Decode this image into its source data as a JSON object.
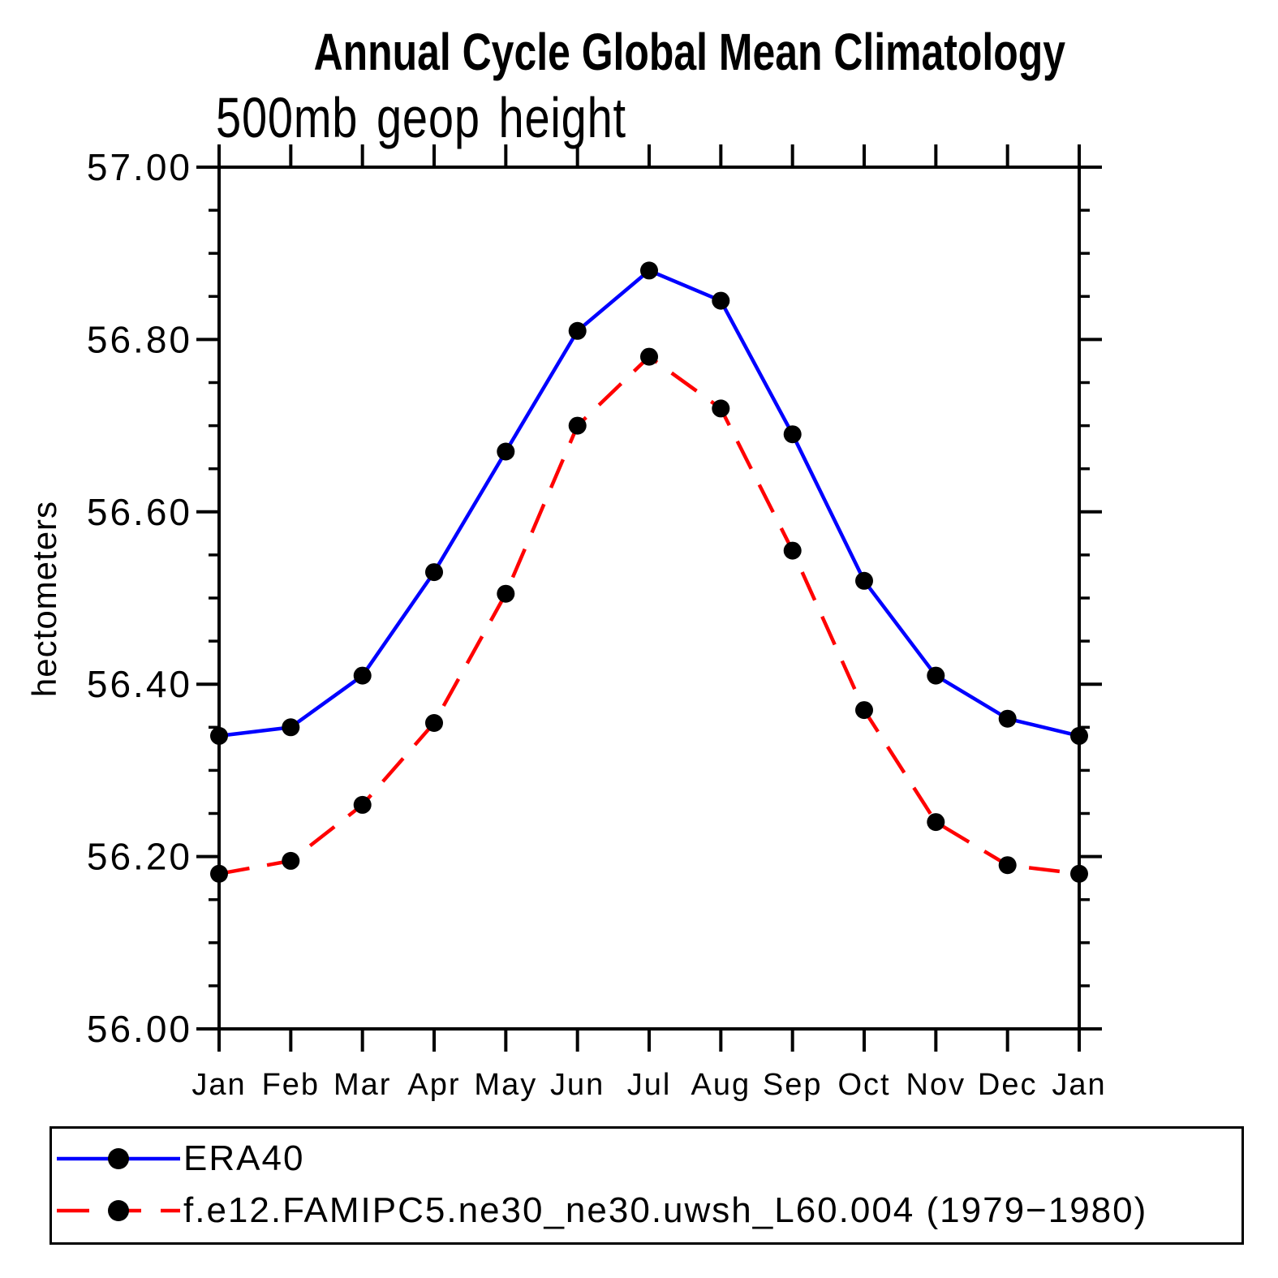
{
  "page": {
    "background": "#ffffff",
    "text_color": "#000000"
  },
  "chart_data": {
    "type": "line",
    "title": "Annual Cycle Global Mean Climatology",
    "subtitle": "500mb geop height",
    "ylabel": "hectometers",
    "x_categories": [
      "Jan",
      "Feb",
      "Mar",
      "Apr",
      "May",
      "Jun",
      "Jul",
      "Aug",
      "Sep",
      "Oct",
      "Nov",
      "Dec",
      "Jan"
    ],
    "ylim": [
      56.0,
      57.0
    ],
    "ytick_values": [
      57.0,
      56.8,
      56.6,
      56.4,
      56.2,
      56.0
    ],
    "ytick_labels": [
      "57.00",
      "56.80",
      "56.60",
      "56.40",
      "56.20",
      "56.00"
    ],
    "ytick_minor_interval": 0.05,
    "grid": false,
    "axis_color": "#000000",
    "legend_position": "bottom",
    "series": [
      {
        "name": "ERA40",
        "color": "#0000ff",
        "line_style": "solid",
        "marker": "circle",
        "marker_color": "#000000",
        "values": [
          56.34,
          56.35,
          56.41,
          56.53,
          56.67,
          56.81,
          56.88,
          56.845,
          56.69,
          56.52,
          56.41,
          56.36,
          56.34
        ]
      },
      {
        "name": "f.e12.FAMIPC5.ne30_ne30.uwsh_L60.004 (1979−1980)",
        "color": "#ff0000",
        "line_style": "dashed",
        "marker": "circle",
        "marker_color": "#000000",
        "values": [
          56.18,
          56.195,
          56.26,
          56.355,
          56.505,
          56.7,
          56.78,
          56.72,
          56.555,
          56.37,
          56.24,
          56.19,
          56.18
        ]
      }
    ]
  }
}
